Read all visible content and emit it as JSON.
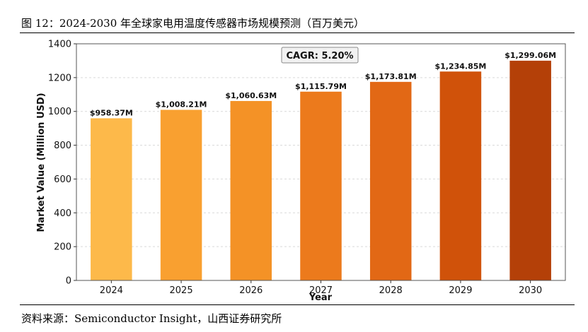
{
  "figure": {
    "title": "图 12：2024-2030 年全球家电用温度传感器市场规模预测（百万美元）",
    "source": "资料来源：Semiconductor Insight，山西证券研究所"
  },
  "chart_data": {
    "type": "bar",
    "categories": [
      "2024",
      "2025",
      "2026",
      "2027",
      "2028",
      "2029",
      "2030"
    ],
    "values": [
      958.37,
      1008.21,
      1060.63,
      1115.79,
      1173.81,
      1234.85,
      1299.06
    ],
    "data_labels": [
      "$958.37M",
      "$1,008.21M",
      "$1,060.63M",
      "$1,115.79M",
      "$1,173.81M",
      "$1,234.85M",
      "$1,299.06M"
    ],
    "bar_colors": [
      "#FDB94A",
      "#F9A030",
      "#F49226",
      "#EC7A1C",
      "#E26815",
      "#D0520A",
      "#B44008"
    ],
    "annotation": "CAGR: 5.20%",
    "xlabel": "Year",
    "ylabel": "Market Value (Million USD)",
    "ylim": [
      0,
      1400
    ],
    "yticks": [
      0,
      200,
      400,
      600,
      800,
      1000,
      1200,
      1400
    ],
    "grid": true,
    "legend": "none"
  }
}
